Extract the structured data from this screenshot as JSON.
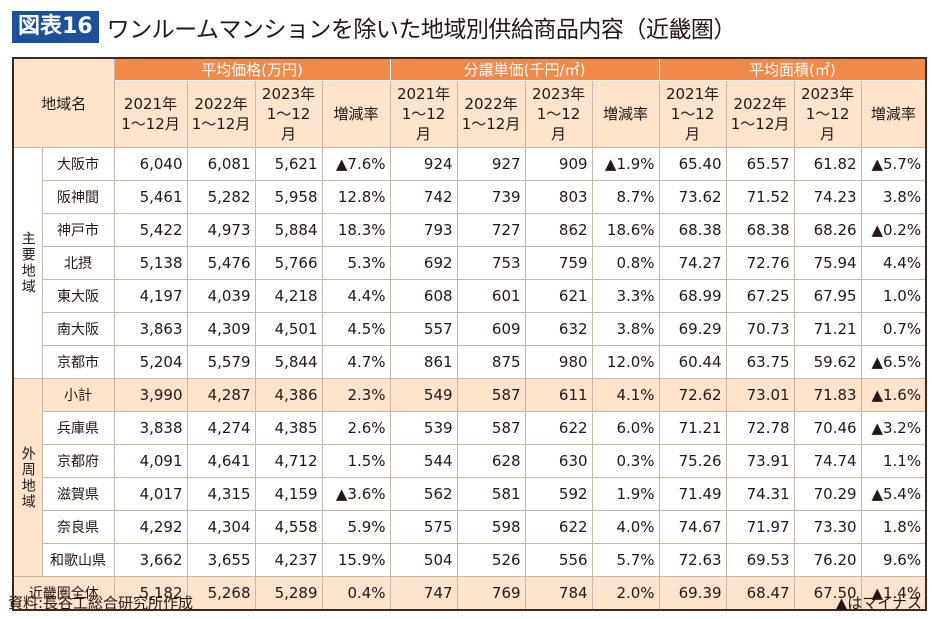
{
  "title": {
    "label": "図表16",
    "text": "ワンルームマンションを除いた地域別供給商品内容（近畿圏）"
  },
  "header": {
    "region": "地域名",
    "groups": [
      "平均価格(万円)",
      "分譲単価(千円/㎡)",
      "平均面積(㎡)"
    ],
    "subs": [
      "2021年\n1～12月",
      "2022年\n1～12月",
      "2023年\n1～12月",
      "増減率"
    ]
  },
  "group_labels": {
    "main": "主要地域",
    "outer": "外周地域"
  },
  "rows": [
    {
      "name": "大阪市",
      "values": [
        "6,040",
        "6,081",
        "5,621",
        "▲7.6%",
        "924",
        "927",
        "909",
        "▲1.9%",
        "65.40",
        "65.57",
        "61.82",
        "▲5.7%"
      ]
    },
    {
      "name": "阪神間",
      "values": [
        "5,461",
        "5,282",
        "5,958",
        "12.8%",
        "742",
        "739",
        "803",
        "8.7%",
        "73.62",
        "71.52",
        "74.23",
        "3.8%"
      ]
    },
    {
      "name": "神戸市",
      "values": [
        "5,422",
        "4,973",
        "5,884",
        "18.3%",
        "793",
        "727",
        "862",
        "18.6%",
        "68.38",
        "68.38",
        "68.26",
        "▲0.2%"
      ]
    },
    {
      "name": "北摂",
      "values": [
        "5,138",
        "5,476",
        "5,766",
        "5.3%",
        "692",
        "753",
        "759",
        "0.8%",
        "74.27",
        "72.76",
        "75.94",
        "4.4%"
      ]
    },
    {
      "name": "東大阪",
      "values": [
        "4,197",
        "4,039",
        "4,218",
        "4.4%",
        "608",
        "601",
        "621",
        "3.3%",
        "68.99",
        "67.25",
        "67.95",
        "1.0%"
      ]
    },
    {
      "name": "南大阪",
      "values": [
        "3,863",
        "4,309",
        "4,501",
        "4.5%",
        "557",
        "609",
        "632",
        "3.8%",
        "69.29",
        "70.73",
        "71.21",
        "0.7%"
      ]
    },
    {
      "name": "京都市",
      "values": [
        "5,204",
        "5,579",
        "5,844",
        "4.7%",
        "861",
        "875",
        "980",
        "12.0%",
        "60.44",
        "63.75",
        "59.62",
        "▲6.5%"
      ]
    },
    {
      "name": "小計",
      "values": [
        "3,990",
        "4,287",
        "4,386",
        "2.3%",
        "549",
        "587",
        "611",
        "4.1%",
        "72.62",
        "73.01",
        "71.83",
        "▲1.6%"
      ]
    },
    {
      "name": "兵庫県",
      "values": [
        "3,838",
        "4,274",
        "4,385",
        "2.6%",
        "539",
        "587",
        "622",
        "6.0%",
        "71.21",
        "72.78",
        "70.46",
        "▲3.2%"
      ]
    },
    {
      "name": "京都府",
      "values": [
        "4,091",
        "4,641",
        "4,712",
        "1.5%",
        "544",
        "628",
        "630",
        "0.3%",
        "75.26",
        "73.91",
        "74.74",
        "1.1%"
      ]
    },
    {
      "name": "滋賀県",
      "values": [
        "4,017",
        "4,315",
        "4,159",
        "▲3.6%",
        "562",
        "581",
        "592",
        "1.9%",
        "71.49",
        "74.31",
        "70.29",
        "▲5.4%"
      ]
    },
    {
      "name": "奈良県",
      "values": [
        "4,292",
        "4,304",
        "4,558",
        "5.9%",
        "575",
        "598",
        "622",
        "4.0%",
        "74.67",
        "71.97",
        "73.30",
        "1.8%"
      ]
    },
    {
      "name": "和歌山県",
      "values": [
        "3,662",
        "3,655",
        "4,237",
        "15.9%",
        "504",
        "526",
        "556",
        "5.7%",
        "72.63",
        "69.53",
        "76.20",
        "9.6%"
      ]
    },
    {
      "name": "近畿圏全体",
      "values": [
        "5,182",
        "5,268",
        "5,289",
        "0.4%",
        "747",
        "769",
        "784",
        "2.0%",
        "69.39",
        "68.47",
        "67.50",
        "▲1.4%"
      ]
    }
  ],
  "footer": {
    "source": "資料:長谷工総合研究所作成",
    "note": "▲はマイナス"
  }
}
